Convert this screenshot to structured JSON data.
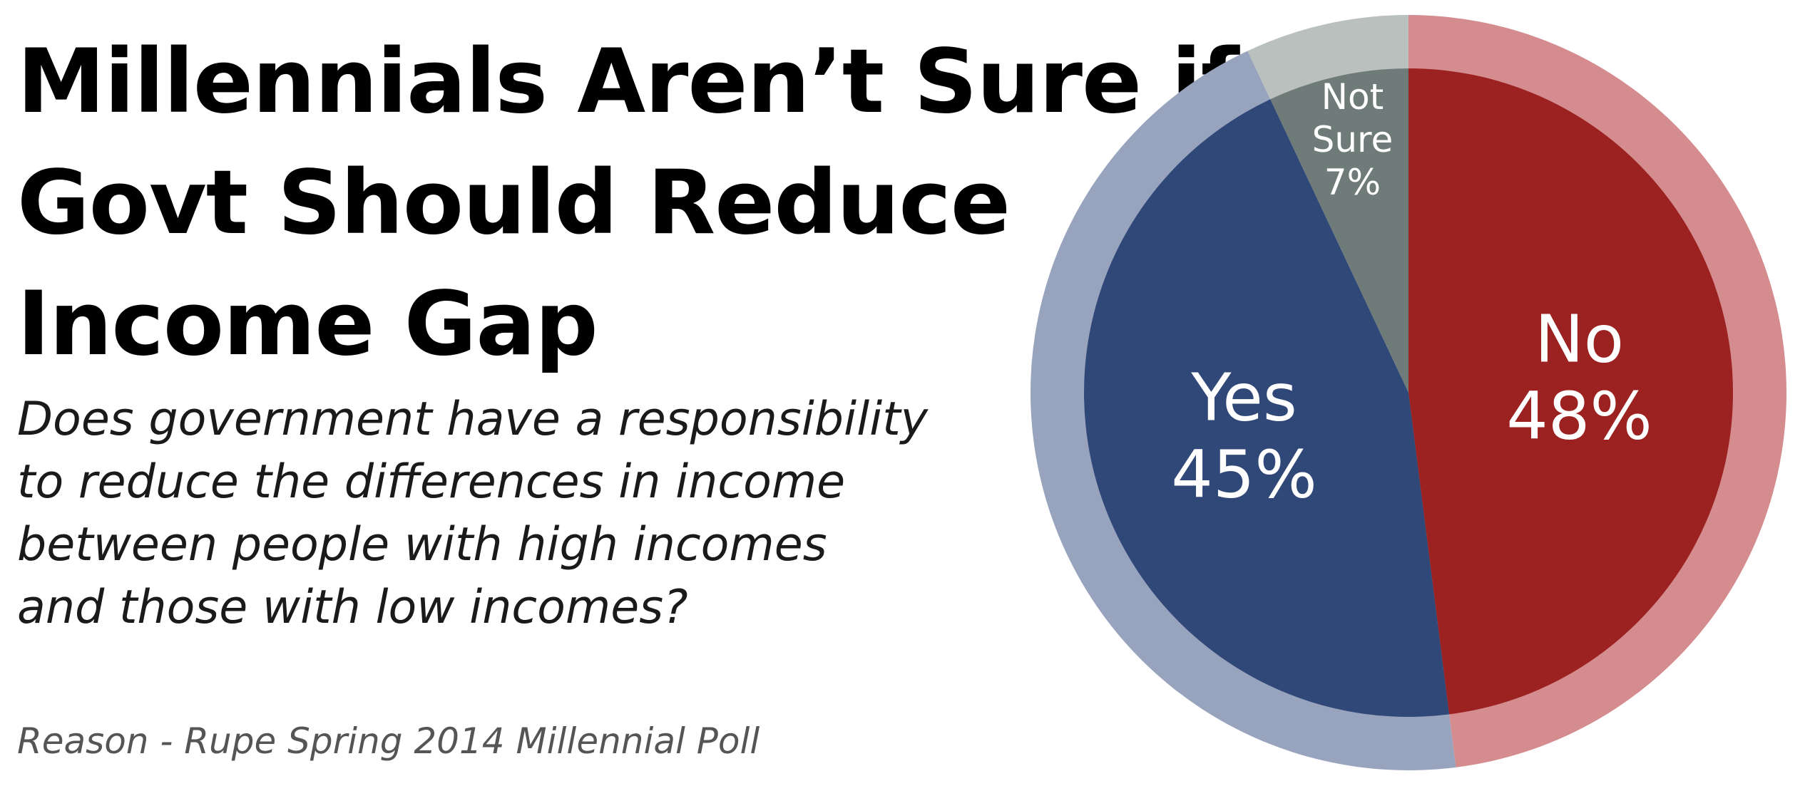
{
  "title_lines": [
    "Millennials Aren’t Sure if",
    "Govt Should Reduce",
    "Income Gap"
  ],
  "subtitle_lines": [
    "Does government have a responsibility",
    "to reduce the differences in income",
    "between people with high incomes",
    "and those with low incomes?"
  ],
  "source": "Reason - Rupe Spring 2014 Millennial Poll",
  "chart_data": {
    "type": "pie",
    "title": "Millennials Aren’t Sure if Govt Should Reduce Income Gap",
    "start": "12 o'clock, clockwise",
    "slices": [
      {
        "label": "No",
        "value": 48,
        "value_label": "48%",
        "color": "#9c2121",
        "ring_color": "#d48c8f"
      },
      {
        "label": "Yes",
        "value": 45,
        "value_label": "45%",
        "color": "#304878",
        "ring_color": "#98a3be"
      },
      {
        "label": "Not Sure",
        "value": 7,
        "value_label": "7%",
        "color": "#6f7b79",
        "ring_color": "#b9c0bd"
      }
    ]
  }
}
